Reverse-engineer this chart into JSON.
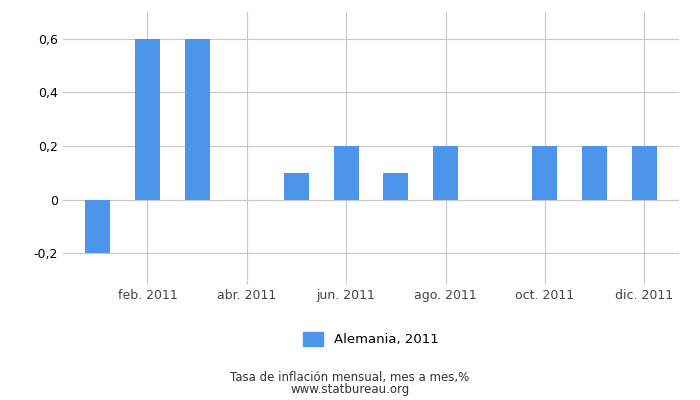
{
  "values": [
    -0.2,
    0.6,
    0.6,
    0.0,
    0.1,
    0.2,
    0.1,
    0.2,
    0.0,
    0.2,
    0.2,
    0.2
  ],
  "bar_color": "#4d94eb",
  "ylim": [
    -0.3,
    0.7
  ],
  "yticks": [
    -0.2,
    0.0,
    0.2,
    0.4,
    0.6
  ],
  "tick_positions": [
    1,
    3,
    5,
    7,
    9,
    11
  ],
  "tick_labels": [
    "feb. 2011",
    "abr. 2011",
    "jun. 2011",
    "ago. 2011",
    "oct. 2011",
    "dic. 2011"
  ],
  "legend_label": "Alemania, 2011",
  "footer_line1": "Tasa de inflación mensual, mes a mes,%",
  "footer_line2": "www.statbureau.org",
  "background_color": "#ffffff",
  "grid_color": "#c8c8c8",
  "bar_width": 0.5
}
